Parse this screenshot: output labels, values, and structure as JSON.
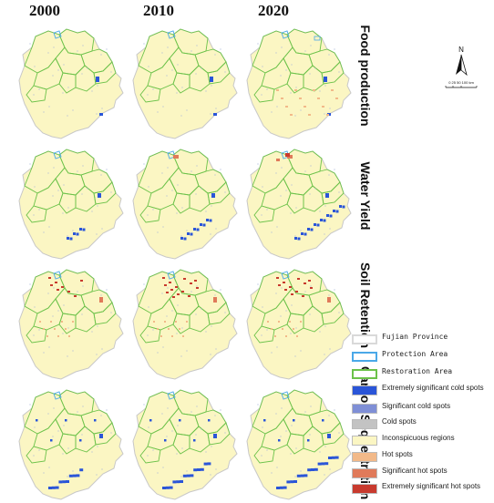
{
  "years": [
    "2000",
    "2010",
    "2020"
  ],
  "rows": [
    {
      "label": "Food production"
    },
    {
      "label": "Water Yield"
    },
    {
      "label": "Soil Retention"
    },
    {
      "label": "Carbon Sequestration"
    }
  ],
  "north_arrow": {
    "letter": "N",
    "scale_text": "0 25 50     100 km"
  },
  "legend": [
    {
      "label": "Fujian Province",
      "color": "#d9d9d9",
      "style": "outline",
      "font": "mono"
    },
    {
      "label": "Protection Area",
      "color": "#4aa8e8",
      "style": "outline",
      "font": "mono"
    },
    {
      "label": "Restoration Area",
      "color": "#6cc24a",
      "style": "outline",
      "font": "mono"
    },
    {
      "label": "Extremely significant cold spots",
      "color": "#2a55d8",
      "style": "fill",
      "font": "sans"
    },
    {
      "label": "Significant cold spots",
      "color": "#7f8fd6",
      "style": "fill",
      "font": "sans"
    },
    {
      "label": "Cold spots",
      "color": "#c3c3c3",
      "style": "fill",
      "font": "sans"
    },
    {
      "label": "Inconspicuous regions",
      "color": "#fbf6c3",
      "style": "fill",
      "font": "sans"
    },
    {
      "label": "Hot spots",
      "color": "#f2b989",
      "style": "fill",
      "font": "sans"
    },
    {
      "label": "Significant hot spots",
      "color": "#e07a5a",
      "style": "fill",
      "font": "sans"
    },
    {
      "label": "Extremely significant hot spots",
      "color": "#c83a2e",
      "style": "fill",
      "font": "sans"
    }
  ],
  "colors": {
    "province_fill": "#fbf6c3",
    "province_border": "#c8c8c8",
    "restoration": "#6cc24a",
    "protection": "#4aa8e8",
    "cold_extreme": "#2a55d8",
    "hot_significant": "#e07a5a",
    "hot_extreme": "#c83a2e",
    "hot": "#f2b989"
  }
}
